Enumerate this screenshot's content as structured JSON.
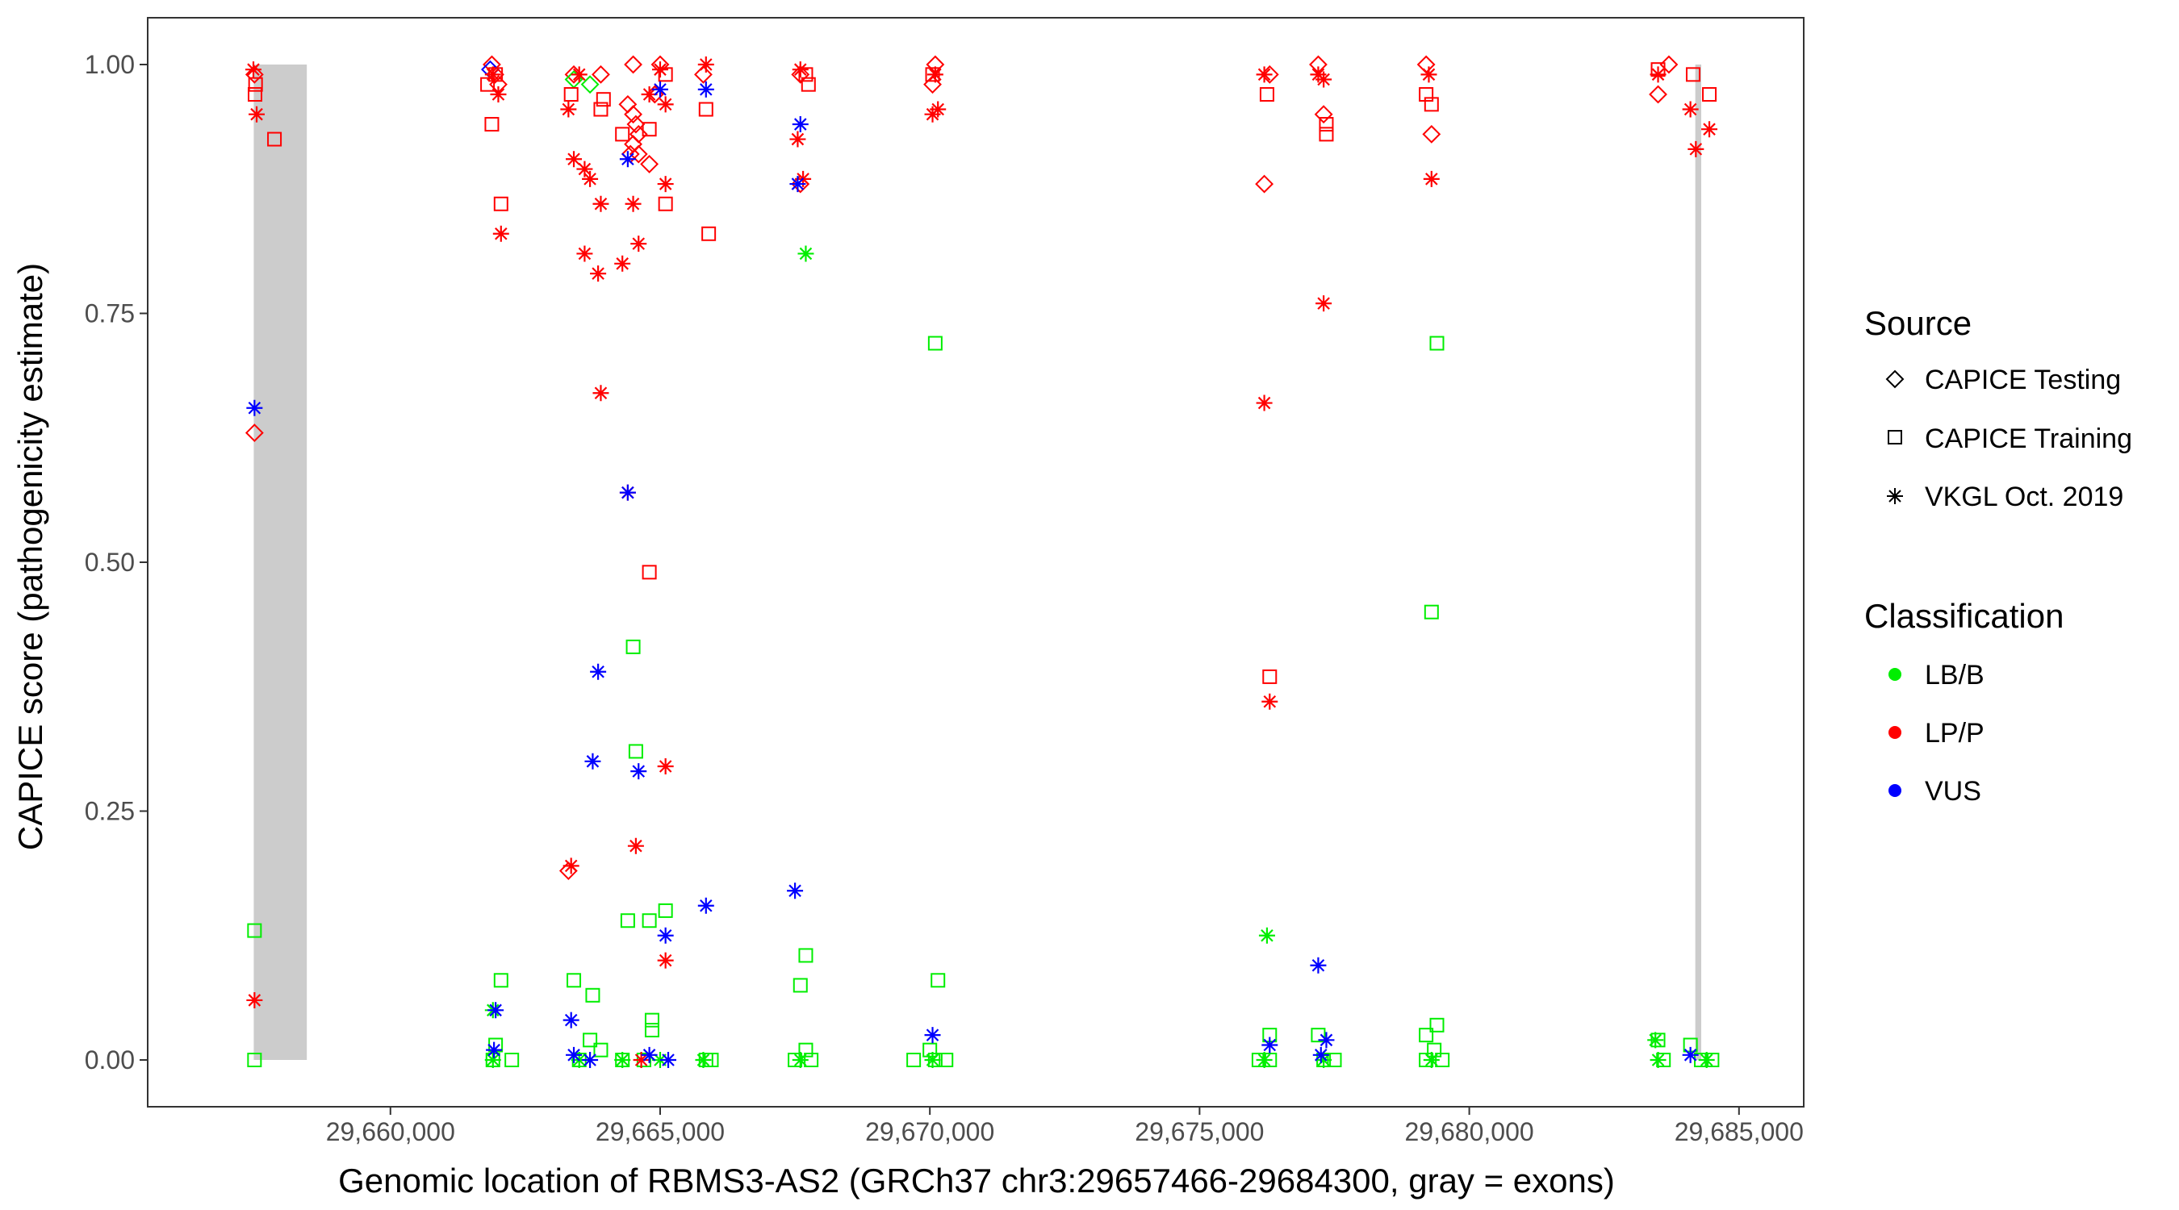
{
  "chart_data": {
    "type": "scatter",
    "title": "",
    "xlabel": "Genomic location of RBMS3-AS2 (GRCh37 chr3:29657466-29684300, gray = exons)",
    "ylabel": "CAPICE score (pathogenicity estimate)",
    "xlim": [
      29655500,
      29686200
    ],
    "ylim": [
      -0.047,
      1.047
    ],
    "xticks": [
      29660000,
      29665000,
      29670000,
      29675000,
      29680000,
      29685000
    ],
    "xtick_labels": [
      "29,660,000",
      "29,665,000",
      "29,670,000",
      "29,675,000",
      "29,680,000",
      "29,685,000"
    ],
    "yticks": [
      0,
      0.25,
      0.5,
      0.75,
      1
    ],
    "ytick_labels": [
      "0.00",
      "0.25",
      "0.50",
      "0.75",
      "1.00"
    ],
    "exons": [
      [
        29657466,
        29658450
      ],
      [
        29684190,
        29684300
      ]
    ],
    "legend": {
      "source_title": "Source",
      "source_items": [
        {
          "label": "CAPICE Testing",
          "shape": "diamond"
        },
        {
          "label": "CAPICE Training",
          "shape": "square"
        },
        {
          "label": "VKGL Oct. 2019",
          "shape": "asterisk"
        }
      ],
      "class_title": "Classification",
      "class_items": [
        {
          "label": "LB/B",
          "color": "#00ee00"
        },
        {
          "label": "LP/P",
          "color": "#ff0000"
        },
        {
          "label": "VUS",
          "color": "#0000ff"
        }
      ]
    },
    "colors": {
      "LB/B": "#00ee00",
      "LP/P": "#ff0000",
      "VUS": "#0000ff",
      "exon": "#cccccc"
    },
    "series": [
      {
        "name": "CAPICE Testing / LP/P",
        "shape": "diamond",
        "class": "LP/P",
        "points": [
          [
            29657480,
            0.99
          ],
          [
            29657480,
            0.63
          ],
          [
            29661880,
            1.0
          ],
          [
            29661940,
            0.99
          ],
          [
            29662000,
            0.98
          ],
          [
            29663300,
            0.19
          ],
          [
            29663400,
            0.99
          ],
          [
            29663900,
            0.99
          ],
          [
            29664400,
            0.96
          ],
          [
            29664500,
            0.95
          ],
          [
            29664550,
            0.94
          ],
          [
            29664600,
            0.93
          ],
          [
            29664500,
            0.92
          ],
          [
            29664450,
            0.91
          ],
          [
            29664600,
            0.91
          ],
          [
            29664800,
            0.9
          ],
          [
            29664900,
            0.97
          ],
          [
            29664500,
            1.0
          ],
          [
            29665000,
            1.0
          ],
          [
            29665800,
            0.99
          ],
          [
            29667600,
            0.99
          ],
          [
            29667600,
            0.88
          ],
          [
            29670050,
            0.98
          ],
          [
            29670100,
            1.0
          ],
          [
            29676200,
            0.88
          ],
          [
            29676300,
            0.99
          ],
          [
            29677300,
            0.95
          ],
          [
            29677200,
            1.0
          ],
          [
            29679300,
            0.93
          ],
          [
            29679200,
            1.0
          ],
          [
            29683500,
            0.97
          ],
          [
            29683700,
            1.0
          ]
        ]
      },
      {
        "name": "CAPICE Testing / LB/B",
        "shape": "diamond",
        "class": "LB/B",
        "points": [
          [
            29663400,
            0.985
          ],
          [
            29663700,
            0.98
          ]
        ]
      },
      {
        "name": "CAPICE Testing / VUS",
        "shape": "diamond",
        "class": "VUS",
        "points": [
          [
            29661850,
            0.995
          ]
        ]
      },
      {
        "name": "CAPICE Training / LP/P",
        "shape": "square",
        "class": "LP/P",
        "points": [
          [
            29657490,
            0.97
          ],
          [
            29657500,
            0.98
          ],
          [
            29657850,
            0.925
          ],
          [
            29661800,
            0.98
          ],
          [
            29661880,
            0.94
          ],
          [
            29662050,
            0.86
          ],
          [
            29661950,
            0.99
          ],
          [
            29663350,
            0.97
          ],
          [
            29663900,
            0.955
          ],
          [
            29663950,
            0.965
          ],
          [
            29664300,
            0.93
          ],
          [
            29664800,
            0.935
          ],
          [
            29664800,
            0.49
          ],
          [
            29665100,
            0.86
          ],
          [
            29665100,
            0.99
          ],
          [
            29665850,
            0.955
          ],
          [
            29665900,
            0.83
          ],
          [
            29667750,
            0.98
          ],
          [
            29667700,
            0.99
          ],
          [
            29670050,
            0.99
          ],
          [
            29676250,
            0.97
          ],
          [
            29676300,
            0.385
          ],
          [
            29677350,
            0.93
          ],
          [
            29677350,
            0.94
          ],
          [
            29679300,
            0.96
          ],
          [
            29679200,
            0.97
          ],
          [
            29683500,
            0.995
          ],
          [
            29684150,
            0.99
          ],
          [
            29684450,
            0.97
          ]
        ]
      },
      {
        "name": "CAPICE Training / LB/B",
        "shape": "square",
        "class": "LB/B",
        "points": [
          [
            29657480,
            0.13
          ],
          [
            29657480,
            0.0
          ],
          [
            29661950,
            0.015
          ],
          [
            29662050,
            0.08
          ],
          [
            29661900,
            0.0
          ],
          [
            29662250,
            0.0
          ],
          [
            29663400,
            0.08
          ],
          [
            29663750,
            0.065
          ],
          [
            29663700,
            0.02
          ],
          [
            29663900,
            0.01
          ],
          [
            29663500,
            0.0
          ],
          [
            29664400,
            0.14
          ],
          [
            29664500,
            0.415
          ],
          [
            29664550,
            0.31
          ],
          [
            29664800,
            0.14
          ],
          [
            29664850,
            0.04
          ],
          [
            29664850,
            0.03
          ],
          [
            29665100,
            0.15
          ],
          [
            29664300,
            0.0
          ],
          [
            29664700,
            0.0
          ],
          [
            29665850,
            0.0
          ],
          [
            29665950,
            0.0
          ],
          [
            29667600,
            0.075
          ],
          [
            29667700,
            0.105
          ],
          [
            29667700,
            0.01
          ],
          [
            29667500,
            0.0
          ],
          [
            29667800,
            0.0
          ],
          [
            29669700,
            0.0
          ],
          [
            29670100,
            0.72
          ],
          [
            29670150,
            0.08
          ],
          [
            29670000,
            0.01
          ],
          [
            29670100,
            0.0
          ],
          [
            29670300,
            0.0
          ],
          [
            29676300,
            0.025
          ],
          [
            29676100,
            0.0
          ],
          [
            29676300,
            0.0
          ],
          [
            29677200,
            0.025
          ],
          [
            29677300,
            0.0
          ],
          [
            29677500,
            0.0
          ],
          [
            29679400,
            0.72
          ],
          [
            29679300,
            0.45
          ],
          [
            29679400,
            0.035
          ],
          [
            29679200,
            0.025
          ],
          [
            29679350,
            0.01
          ],
          [
            29679200,
            0.0
          ],
          [
            29679500,
            0.0
          ],
          [
            29683500,
            0.02
          ],
          [
            29683600,
            0.0
          ],
          [
            29684100,
            0.015
          ],
          [
            29684300,
            0.0
          ],
          [
            29684500,
            0.0
          ]
        ]
      },
      {
        "name": "VKGL Oct. 2019 / LP/P",
        "shape": "asterisk",
        "class": "LP/P",
        "points": [
          [
            29657460,
            0.995
          ],
          [
            29657520,
            0.95
          ],
          [
            29657480,
            0.06
          ],
          [
            29661900,
            0.99
          ],
          [
            29662000,
            0.97
          ],
          [
            29662050,
            0.83
          ],
          [
            29663300,
            0.955
          ],
          [
            29663400,
            0.905
          ],
          [
            29663350,
            0.195
          ],
          [
            29663600,
            0.895
          ],
          [
            29663700,
            0.885
          ],
          [
            29663600,
            0.81
          ],
          [
            29663850,
            0.79
          ],
          [
            29663900,
            0.86
          ],
          [
            29663900,
            0.67
          ],
          [
            29663500,
            0.99
          ],
          [
            29664300,
            0.8
          ],
          [
            29664400,
            0.57
          ],
          [
            29664500,
            0.86
          ],
          [
            29664600,
            0.82
          ],
          [
            29664550,
            0.215
          ],
          [
            29664650,
            0.0
          ],
          [
            29665000,
            0.995
          ],
          [
            29665100,
            0.96
          ],
          [
            29665100,
            0.88
          ],
          [
            29665100,
            0.295
          ],
          [
            29665100,
            0.1
          ],
          [
            29664800,
            0.97
          ],
          [
            29665850,
            1.0
          ],
          [
            29667550,
            0.925
          ],
          [
            29667650,
            0.885
          ],
          [
            29667600,
            0.995
          ],
          [
            29670050,
            0.95
          ],
          [
            29670150,
            0.955
          ],
          [
            29670100,
            0.99
          ],
          [
            29676200,
            0.99
          ],
          [
            29676200,
            0.66
          ],
          [
            29676300,
            0.36
          ],
          [
            29677300,
            0.76
          ],
          [
            29677300,
            0.985
          ],
          [
            29677200,
            0.99
          ],
          [
            29679300,
            0.885
          ],
          [
            29679250,
            0.99
          ],
          [
            29683500,
            0.99
          ],
          [
            29684100,
            0.955
          ],
          [
            29684200,
            0.915
          ],
          [
            29684450,
            0.935
          ]
        ]
      },
      {
        "name": "VKGL Oct. 2019 / LB/B",
        "shape": "asterisk",
        "class": "LB/B",
        "points": [
          [
            29667700,
            0.81
          ],
          [
            29676250,
            0.125
          ],
          [
            29661900,
            0.05
          ],
          [
            29661900,
            0.0
          ],
          [
            29663500,
            0.0
          ],
          [
            29664300,
            0.0
          ],
          [
            29665000,
            0.0
          ],
          [
            29665800,
            0.0
          ],
          [
            29667600,
            0.0
          ],
          [
            29670050,
            0.0
          ],
          [
            29676200,
            0.0
          ],
          [
            29677300,
            0.0
          ],
          [
            29679300,
            0.0
          ],
          [
            29683450,
            0.02
          ],
          [
            29683500,
            0.0
          ],
          [
            29684400,
            0.0
          ]
        ]
      },
      {
        "name": "VKGL Oct. 2019 / VUS",
        "shape": "asterisk",
        "class": "VUS",
        "points": [
          [
            29657480,
            0.655
          ],
          [
            29661950,
            0.05
          ],
          [
            29661920,
            0.01
          ],
          [
            29663350,
            0.04
          ],
          [
            29663400,
            0.005
          ],
          [
            29663700,
            0.0
          ],
          [
            29663750,
            0.3
          ],
          [
            29663850,
            0.39
          ],
          [
            29664400,
            0.905
          ],
          [
            29664400,
            0.57
          ],
          [
            29664600,
            0.29
          ],
          [
            29664800,
            0.005
          ],
          [
            29665000,
            0.975
          ],
          [
            29665100,
            0.125
          ],
          [
            29665150,
            0.0
          ],
          [
            29665850,
            0.975
          ],
          [
            29665850,
            0.155
          ],
          [
            29667600,
            0.94
          ],
          [
            29667550,
            0.88
          ],
          [
            29667500,
            0.17
          ],
          [
            29670050,
            0.025
          ],
          [
            29676300,
            0.015
          ],
          [
            29677200,
            0.095
          ],
          [
            29677350,
            0.02
          ],
          [
            29677250,
            0.005
          ],
          [
            29684100,
            0.005
          ]
        ]
      }
    ]
  }
}
